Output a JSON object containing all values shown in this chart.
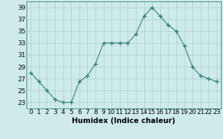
{
  "x": [
    0,
    1,
    2,
    3,
    4,
    5,
    6,
    7,
    8,
    9,
    10,
    11,
    12,
    13,
    14,
    15,
    16,
    17,
    18,
    19,
    20,
    21,
    22,
    23
  ],
  "y": [
    28.0,
    26.5,
    25.0,
    23.5,
    23.0,
    23.0,
    26.5,
    27.5,
    29.5,
    33.0,
    33.0,
    33.0,
    33.0,
    34.5,
    37.5,
    39.0,
    37.5,
    36.0,
    35.0,
    32.5,
    29.0,
    27.5,
    27.0,
    26.5
  ],
  "line_color": "#2e7d6e",
  "marker": "+",
  "marker_size": 4,
  "bg_color": "#ceeaea",
  "grid_color": "#aacece",
  "xlabel": "Humidex (Indice chaleur)",
  "ylabel": "",
  "xlim": [
    -0.5,
    23.5
  ],
  "ylim": [
    22,
    40
  ],
  "yticks": [
    23,
    25,
    27,
    29,
    31,
    33,
    35,
    37,
    39
  ],
  "xticks": [
    0,
    1,
    2,
    3,
    4,
    5,
    6,
    7,
    8,
    9,
    10,
    11,
    12,
    13,
    14,
    15,
    16,
    17,
    18,
    19,
    20,
    21,
    22,
    23
  ],
  "tick_fontsize": 6.5,
  "label_fontsize": 7.5
}
